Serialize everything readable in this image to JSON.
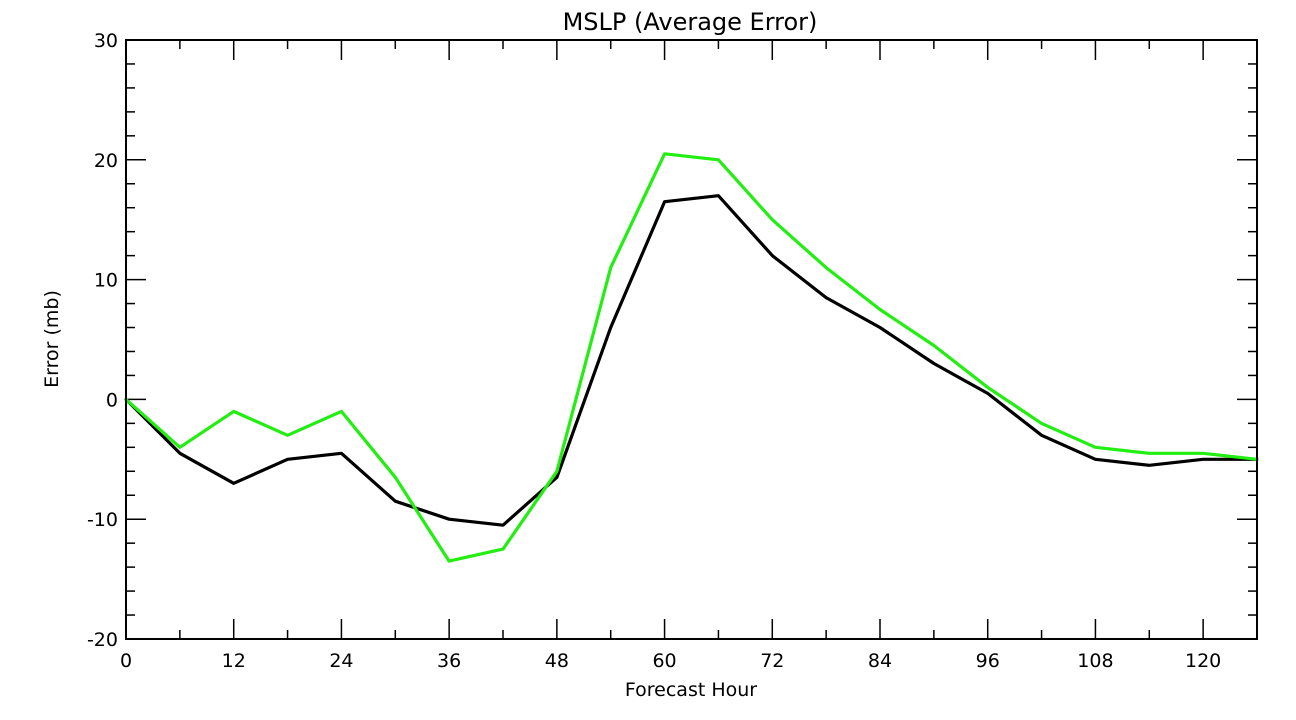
{
  "chart_data": {
    "type": "line",
    "title": "MSLP (Average Error)",
    "xlabel": "Forecast Hour",
    "ylabel": "Error (mb)",
    "xlim": [
      0,
      126
    ],
    "ylim": [
      -20,
      30
    ],
    "x_ticks": [
      0,
      12,
      24,
      36,
      48,
      60,
      72,
      84,
      96,
      108,
      120
    ],
    "x_minor_step": 6,
    "y_ticks": [
      -20,
      -10,
      0,
      10,
      20,
      30
    ],
    "y_minor_step": 2,
    "x": [
      0,
      6,
      12,
      18,
      24,
      30,
      36,
      42,
      48,
      54,
      60,
      66,
      72,
      78,
      84,
      90,
      96,
      102,
      108,
      114,
      120,
      126
    ],
    "series": [
      {
        "color": "#000000",
        "values": [
          0,
          -4.5,
          -7,
          -5,
          -4.5,
          -8.5,
          -10,
          -10.5,
          -6.5,
          6,
          16.5,
          17,
          12,
          8.5,
          6,
          3,
          0.5,
          -3,
          -5,
          -5.5,
          -5,
          -5
        ]
      },
      {
        "color": "#22ee11",
        "values": [
          0,
          -4,
          -1,
          -3,
          -1,
          -6.5,
          -13.5,
          -12.5,
          -6,
          11,
          20.5,
          20,
          15,
          11,
          7.5,
          4.5,
          1,
          -2,
          -4,
          -4.5,
          -4.5,
          -5
        ]
      }
    ],
    "grid": false,
    "legend": "none"
  }
}
